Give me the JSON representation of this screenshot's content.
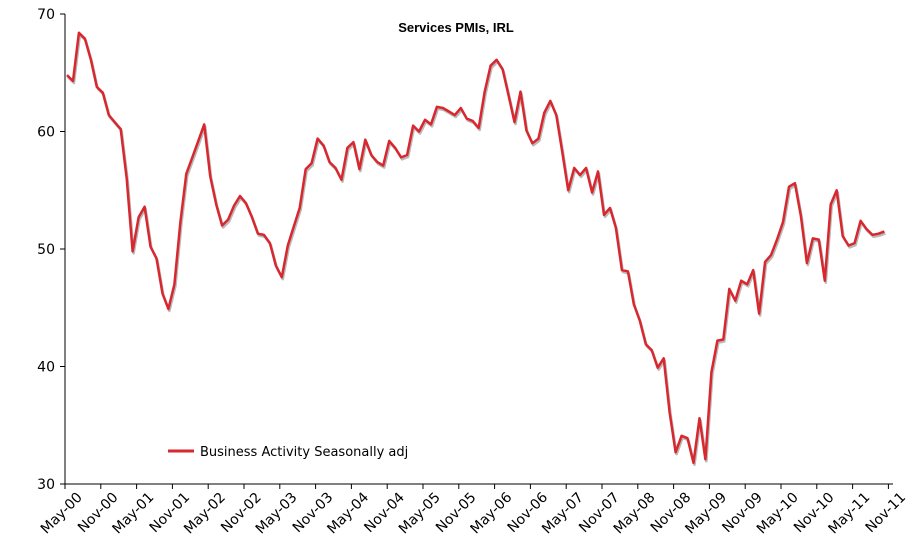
{
  "chart_data": {
    "type": "line",
    "title": "Services PMIs, IRL",
    "xlabel": "",
    "ylabel": "",
    "ylim": [
      30,
      70
    ],
    "yticks": [
      30,
      40,
      50,
      60,
      70
    ],
    "grid": false,
    "legend_position": "bottom-left",
    "x_tick_labels": [
      "May-00",
      "Nov-00",
      "May-01",
      "Nov-01",
      "May-02",
      "Nov-02",
      "May-03",
      "Nov-03",
      "May-04",
      "Nov-04",
      "May-05",
      "Nov-05",
      "May-06",
      "Nov-06",
      "May-07",
      "Nov-07",
      "May-08",
      "Nov-08",
      "May-09",
      "Nov-09",
      "May-10",
      "Nov-10",
      "May-11",
      "Nov-11"
    ],
    "series": [
      {
        "name": "Business Activity Seasonally adj",
        "color": "#d8272e",
        "start": "May-00",
        "values": [
          64.8,
          64.3,
          68.4,
          67.9,
          66.1,
          63.8,
          63.3,
          61.4,
          60.8,
          60.2,
          56.0,
          49.8,
          52.7,
          53.6,
          50.2,
          49.2,
          46.2,
          44.9,
          47.0,
          52.3,
          56.4,
          57.8,
          59.2,
          60.6,
          56.2,
          53.8,
          52.0,
          52.5,
          53.7,
          54.5,
          53.9,
          52.7,
          51.3,
          51.2,
          50.5,
          48.6,
          47.6,
          50.3,
          51.9,
          53.5,
          56.8,
          57.3,
          59.4,
          58.8,
          57.4,
          56.9,
          55.9,
          58.6,
          59.1,
          56.8,
          59.3,
          58.0,
          57.4,
          57.1,
          59.2,
          58.6,
          57.8,
          58.0,
          60.5,
          60.0,
          61.0,
          60.6,
          62.1,
          62.0,
          61.7,
          61.4,
          62.0,
          61.1,
          60.9,
          60.3,
          63.4,
          65.6,
          66.1,
          65.3,
          63.1,
          60.8,
          63.4,
          60.1,
          59.0,
          59.4,
          61.6,
          62.6,
          61.4,
          58.3,
          55.0,
          56.9,
          56.3,
          56.9,
          54.8,
          56.6,
          52.9,
          53.5,
          51.8,
          48.2,
          48.1,
          45.3,
          43.9,
          41.9,
          41.4,
          39.9,
          40.7,
          36.1,
          32.7,
          34.1,
          33.9,
          31.8,
          35.6,
          32.1,
          39.5,
          42.2,
          42.3,
          46.6,
          45.6,
          47.3,
          47.0,
          48.2,
          44.5,
          48.9,
          49.5,
          50.8,
          52.3,
          55.3,
          55.6,
          52.8,
          48.8,
          50.9,
          50.8,
          47.3,
          53.8,
          55.0,
          51.1,
          50.3,
          50.5,
          52.4,
          51.7,
          51.2,
          51.3,
          51.5
        ]
      }
    ]
  }
}
